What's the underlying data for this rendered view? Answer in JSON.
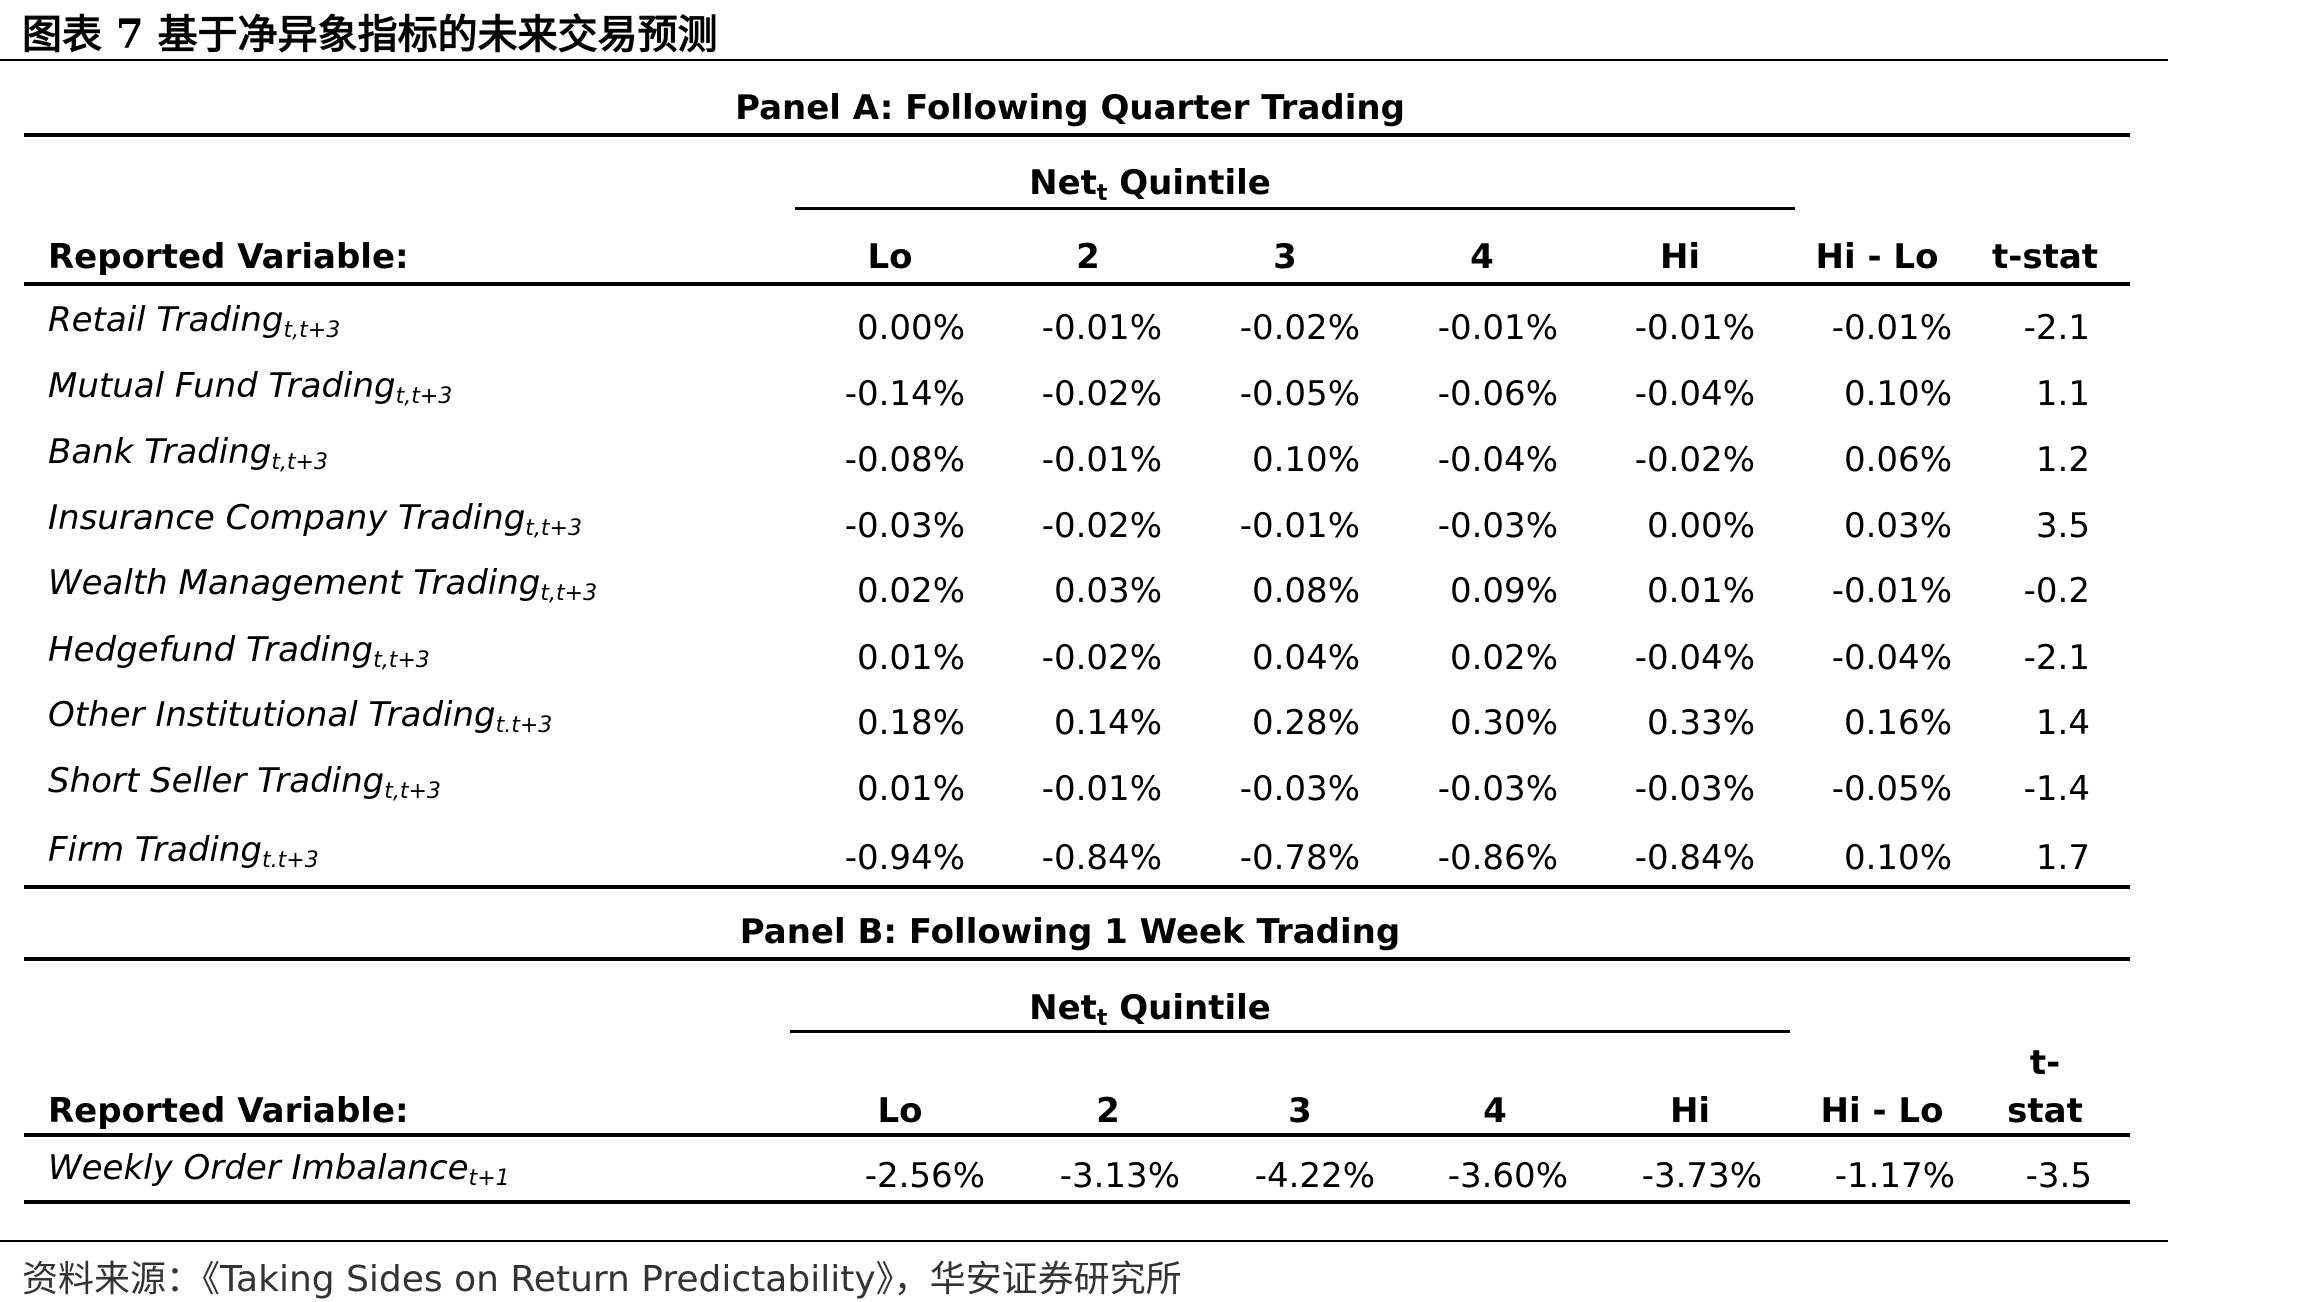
{
  "figure_title": "图表 7 基于净异象指标的未来交易预测",
  "source": {
    "prefix": "资料来源：",
    "title": "《Taking Sides on Return Predictability》，",
    "org": "华安证券研究所"
  },
  "panel_a": {
    "title": "Panel A: Following Quarter Trading",
    "quintile_label": "Net",
    "quintile_sub": "t",
    "quintile_suffix": " Quintile",
    "row_header": "Reported Variable:",
    "columns": [
      "Lo",
      "2",
      "3",
      "4",
      "Hi",
      "Hi - Lo",
      "t-stat"
    ],
    "rows": [
      {
        "label": "Retail Trading",
        "sub": "t,t+3",
        "values": [
          "0.00%",
          "-0.01%",
          "-0.02%",
          "-0.01%",
          "-0.01%",
          "-0.01%",
          "-2.1"
        ]
      },
      {
        "label": "Mutual Fund Trading",
        "sub": "t,t+3",
        "values": [
          "-0.14%",
          "-0.02%",
          "-0.05%",
          "-0.06%",
          "-0.04%",
          "0.10%",
          "1.1"
        ]
      },
      {
        "label": "Bank Trading",
        "sub": "t,t+3",
        "values": [
          "-0.08%",
          "-0.01%",
          "0.10%",
          "-0.04%",
          "-0.02%",
          "0.06%",
          "1.2"
        ]
      },
      {
        "label": "Insurance Company Trading",
        "sub": "t,t+3",
        "values": [
          "-0.03%",
          "-0.02%",
          "-0.01%",
          "-0.03%",
          "0.00%",
          "0.03%",
          "3.5"
        ]
      },
      {
        "label": "Wealth Management Trading",
        "sub": "t,t+3",
        "values": [
          "0.02%",
          "0.03%",
          "0.08%",
          "0.09%",
          "0.01%",
          "-0.01%",
          "-0.2"
        ]
      },
      {
        "label": "Hedgefund Trading",
        "sub": "t,t+3",
        "values": [
          "0.01%",
          "-0.02%",
          "0.04%",
          "0.02%",
          "-0.04%",
          "-0.04%",
          "-2.1"
        ]
      },
      {
        "label": "Other Institutional Trading",
        "sub": "t.t+3",
        "values": [
          "0.18%",
          "0.14%",
          "0.28%",
          "0.30%",
          "0.33%",
          "0.16%",
          "1.4"
        ]
      },
      {
        "label": "Short Seller Trading",
        "sub": "t,t+3",
        "values": [
          "0.01%",
          "-0.01%",
          "-0.03%",
          "-0.03%",
          "-0.03%",
          "-0.05%",
          "-1.4"
        ]
      },
      {
        "label": "Firm Trading",
        "sub": "t.t+3",
        "values": [
          "-0.94%",
          "-0.84%",
          "-0.78%",
          "-0.86%",
          "-0.84%",
          "0.10%",
          "1.7"
        ]
      }
    ]
  },
  "panel_b": {
    "title": "Panel B: Following 1 Week Trading",
    "quintile_label": "Net",
    "quintile_sub": "t",
    "quintile_suffix": " Quintile",
    "row_header": "Reported Variable:",
    "columns": [
      "Lo",
      "2",
      "3",
      "4",
      "Hi",
      "Hi - Lo"
    ],
    "tstat_line1": "t-",
    "tstat_line2": "stat",
    "rows": [
      {
        "label": "Weekly Order Imbalance",
        "sub": "t+1",
        "values": [
          "-2.56%",
          "-3.13%",
          "-4.22%",
          "-3.60%",
          "-3.73%",
          "-1.17%",
          "-3.5"
        ]
      }
    ]
  }
}
